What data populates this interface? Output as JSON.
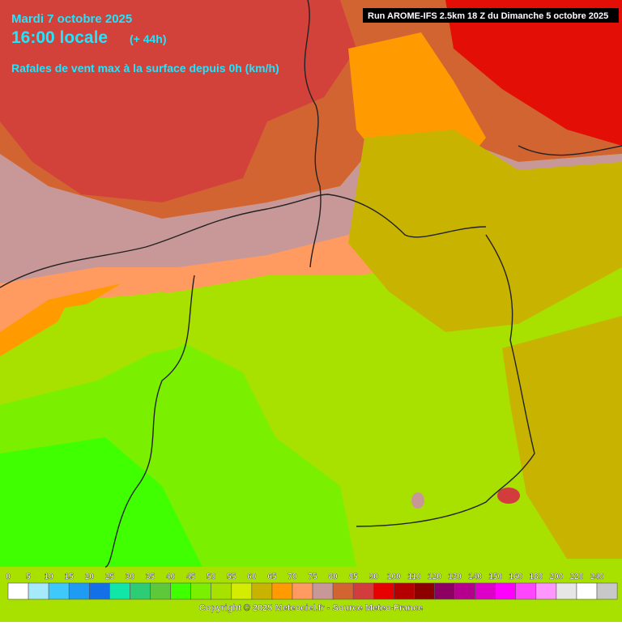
{
  "header": {
    "date": "Mardi 7 octobre 2025",
    "time": "16:00 locale",
    "lead": "(+ 44h)",
    "parameter": "Rafales de vent max à la surface depuis 0h (km/h)",
    "run": "Run AROME-IFS 2.5km 18 Z du Dimanche 5 octobre 2025"
  },
  "legend": [
    {
      "label": 0,
      "color": "#ffffff"
    },
    {
      "label": 5,
      "color": "#a6e9fb"
    },
    {
      "label": 10,
      "color": "#3fc9fb"
    },
    {
      "label": 15,
      "color": "#1e9cf4"
    },
    {
      "label": 20,
      "color": "#1470e6"
    },
    {
      "label": 25,
      "color": "#10e6a8"
    },
    {
      "label": 30,
      "color": "#2ecc74"
    },
    {
      "label": 35,
      "color": "#5cc83a"
    },
    {
      "label": 40,
      "color": "#40ff00"
    },
    {
      "label": 45,
      "color": "#7af000"
    },
    {
      "label": 50,
      "color": "#a8e000"
    },
    {
      "label": 55,
      "color": "#d4ec00"
    },
    {
      "label": 60,
      "color": "#c8b400"
    },
    {
      "label": 65,
      "color": "#ff9a00"
    },
    {
      "label": 70,
      "color": "#ff9a60"
    },
    {
      "label": 75,
      "color": "#c89898"
    },
    {
      "label": 80,
      "color": "#d26432"
    },
    {
      "label": 85,
      "color": "#d23c3c"
    },
    {
      "label": 90,
      "color": "#e60000"
    },
    {
      "label": 100,
      "color": "#b40000"
    },
    {
      "label": 110,
      "color": "#8c0000"
    },
    {
      "label": 120,
      "color": "#8c0064"
    },
    {
      "label": 130,
      "color": "#b4008c"
    },
    {
      "label": 140,
      "color": "#dc00c8"
    },
    {
      "label": 150,
      "color": "#ff00ff"
    },
    {
      "label": 160,
      "color": "#ff46ff"
    },
    {
      "label": 180,
      "color": "#ff96ff"
    },
    {
      "label": 200,
      "color": "#e6e6e6"
    },
    {
      "label": 220,
      "color": "#ffffff"
    },
    {
      "label": 240,
      "color": "#c8c8c8"
    }
  ],
  "copyright": "Copyright © 2025 Meteociel.fr - Source Meteo-France"
}
